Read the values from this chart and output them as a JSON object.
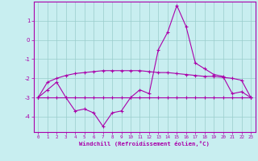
{
  "xlabel": "Windchill (Refroidissement éolien,°C)",
  "x_hours": [
    0,
    1,
    2,
    3,
    4,
    5,
    6,
    7,
    8,
    9,
    10,
    11,
    12,
    13,
    14,
    15,
    16,
    17,
    18,
    19,
    20,
    21,
    22,
    23
  ],
  "line1_y": [
    -3.0,
    -2.6,
    -2.2,
    -3.0,
    -3.7,
    -3.6,
    -3.8,
    -4.5,
    -3.8,
    -3.7,
    -3.0,
    -2.6,
    -2.8,
    -0.5,
    0.4,
    1.8,
    0.7,
    -1.2,
    -1.5,
    -1.8,
    -1.9,
    -2.8,
    -2.7,
    -3.0
  ],
  "line2_y": [
    -3.0,
    -3.0,
    -3.0,
    -3.0,
    -3.0,
    -3.0,
    -3.0,
    -3.0,
    -3.0,
    -3.0,
    -3.0,
    -3.0,
    -3.0,
    -3.0,
    -3.0,
    -3.0,
    -3.0,
    -3.0,
    -3.0,
    -3.0,
    -3.0,
    -3.0,
    -3.0,
    -3.0
  ],
  "line3_y": [
    -3.0,
    -2.2,
    -2.0,
    -1.85,
    -1.75,
    -1.7,
    -1.65,
    -1.6,
    -1.6,
    -1.6,
    -1.6,
    -1.6,
    -1.65,
    -1.7,
    -1.7,
    -1.75,
    -1.8,
    -1.85,
    -1.9,
    -1.9,
    -1.95,
    -2.0,
    -2.1,
    -3.0
  ],
  "line_color": "#aa00aa",
  "bg_color": "#c8eef0",
  "grid_color": "#99cccc",
  "ylim": [
    -4.8,
    2.0
  ],
  "yticks": [
    -4,
    -3,
    -2,
    -1,
    0,
    1
  ],
  "xticks": [
    0,
    1,
    2,
    3,
    4,
    5,
    6,
    7,
    8,
    9,
    10,
    11,
    12,
    13,
    14,
    15,
    16,
    17,
    18,
    19,
    20,
    21,
    22,
    23
  ],
  "xtick_labels": [
    "0",
    "1",
    "2",
    "3",
    "4",
    "5",
    "6",
    "7",
    "8",
    "9",
    "10",
    "11",
    "12",
    "13",
    "14",
    "15",
    "16",
    "17",
    "18",
    "19",
    "20",
    "21",
    "22",
    "23"
  ]
}
